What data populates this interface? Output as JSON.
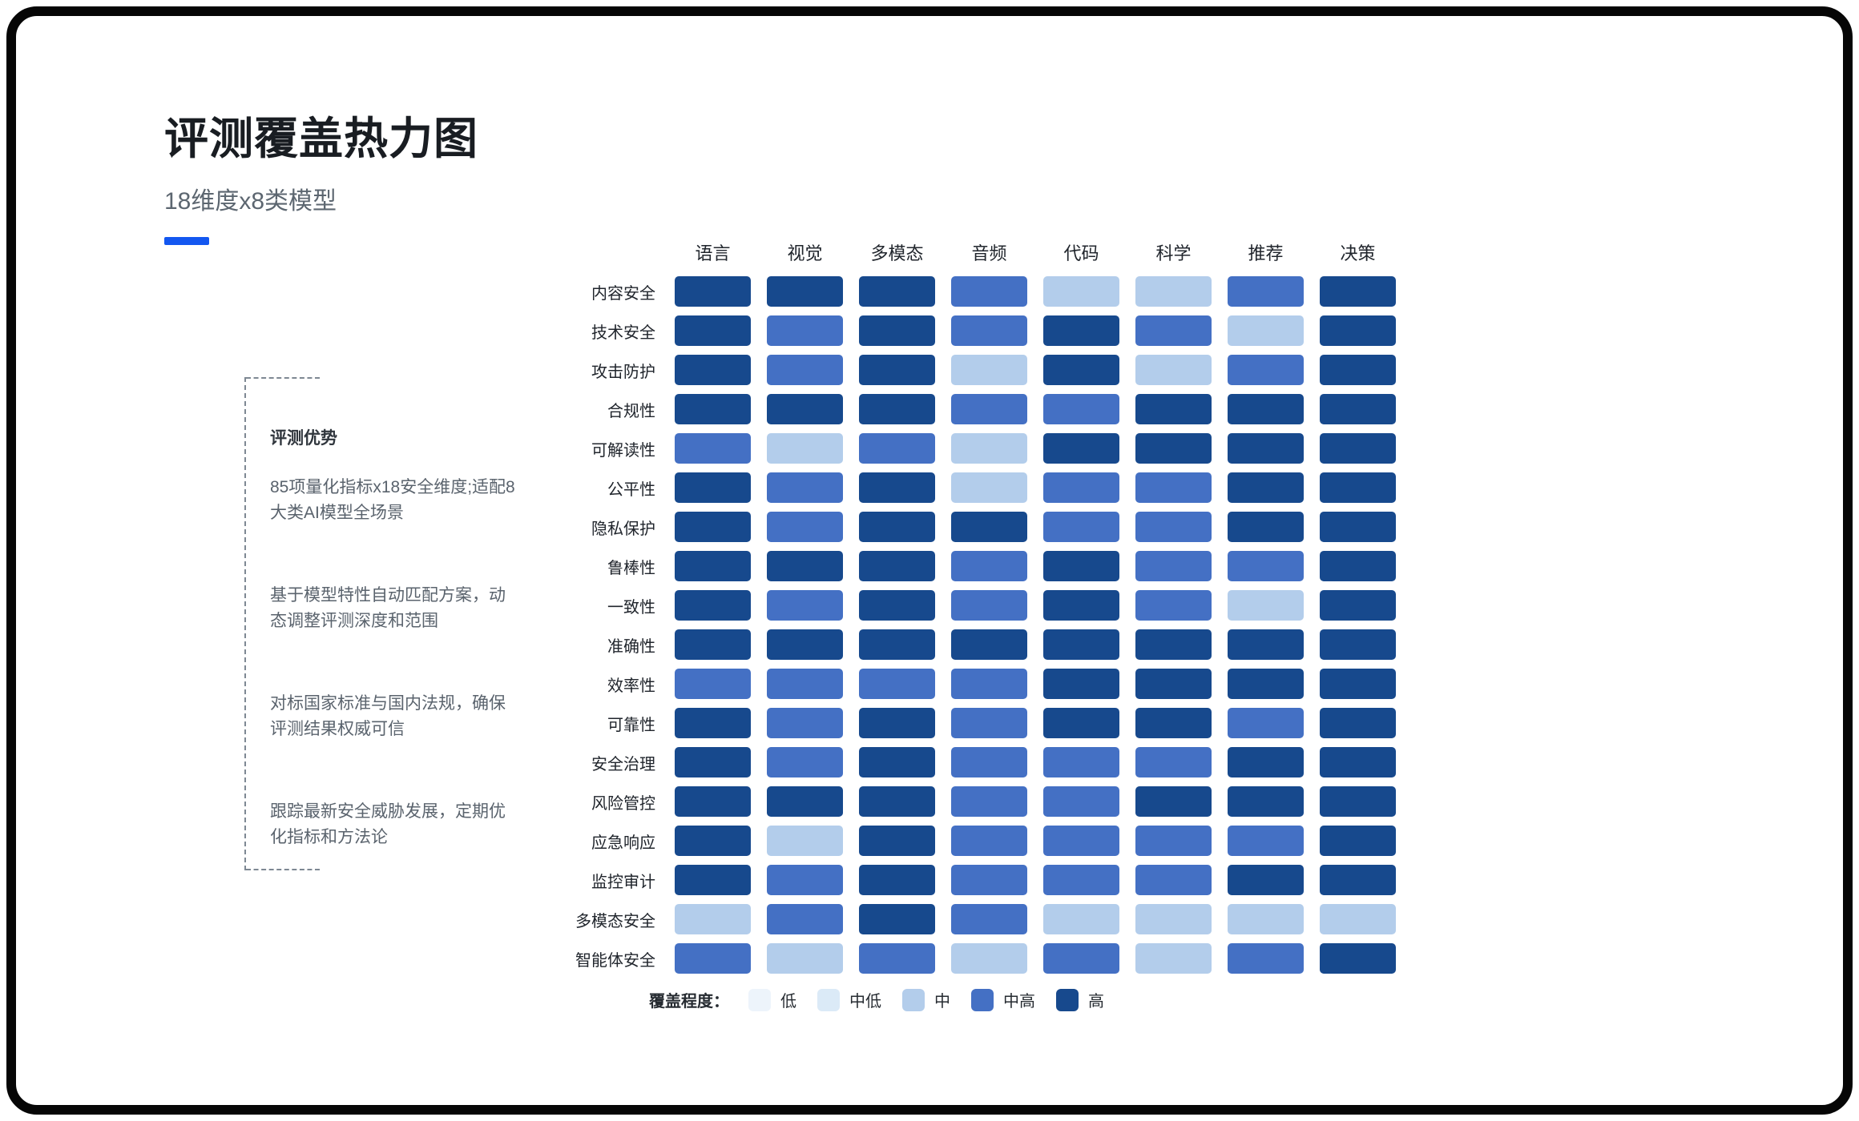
{
  "header": {
    "title": "评测覆盖热力图",
    "subtitle": "18维度x8类模型",
    "accent_color": "#1357f0"
  },
  "sidebar": {
    "heading": "评测优势",
    "items": [
      "85项量化指标x18安全维度;适配8大类AI模型全场景",
      "基于模型特性自动匹配方案，动态调整评测深度和范围",
      "对标国家标准与国内法规，确保评测结果权威可信",
      "跟踪最新安全威胁发展，定期优化指标和方法论"
    ]
  },
  "chart_data": {
    "type": "heatmap",
    "legend_title": "覆盖程度：",
    "columns": [
      "语言",
      "视觉",
      "多模态",
      "音频",
      "代码",
      "科学",
      "推荐",
      "决策"
    ],
    "rows": [
      "内容安全",
      "技术安全",
      "攻击防护",
      "合规性",
      "可解读性",
      "公平性",
      "隐私保护",
      "鲁棒性",
      "一致性",
      "准确性",
      "效率性",
      "可靠性",
      "安全治理",
      "风险管控",
      "应急响应",
      "监控审计",
      "多模态安全",
      "智能体安全"
    ],
    "levels": [
      {
        "value": 1,
        "label": "低",
        "color": "#edf4fb"
      },
      {
        "value": 2,
        "label": "中低",
        "color": "#dbeaf7"
      },
      {
        "value": 3,
        "label": "中",
        "color": "#b3cdeb"
      },
      {
        "value": 4,
        "label": "中高",
        "color": "#4470c4"
      },
      {
        "value": 5,
        "label": "高",
        "color": "#17498d"
      }
    ],
    "values": [
      [
        5,
        5,
        5,
        4,
        3,
        3,
        4,
        5
      ],
      [
        5,
        4,
        5,
        4,
        5,
        4,
        3,
        5
      ],
      [
        5,
        4,
        5,
        3,
        5,
        3,
        4,
        5
      ],
      [
        5,
        5,
        5,
        4,
        4,
        5,
        5,
        5
      ],
      [
        4,
        3,
        4,
        3,
        5,
        5,
        5,
        5
      ],
      [
        5,
        4,
        5,
        3,
        4,
        4,
        5,
        5
      ],
      [
        5,
        4,
        5,
        5,
        4,
        4,
        5,
        5
      ],
      [
        5,
        5,
        5,
        4,
        5,
        4,
        4,
        5
      ],
      [
        5,
        4,
        5,
        4,
        5,
        4,
        3,
        5
      ],
      [
        5,
        5,
        5,
        5,
        5,
        5,
        5,
        5
      ],
      [
        4,
        4,
        4,
        4,
        5,
        5,
        5,
        5
      ],
      [
        5,
        4,
        5,
        4,
        5,
        5,
        4,
        5
      ],
      [
        5,
        4,
        5,
        4,
        4,
        4,
        5,
        5
      ],
      [
        5,
        5,
        5,
        4,
        4,
        5,
        5,
        5
      ],
      [
        5,
        3,
        5,
        4,
        4,
        4,
        4,
        5
      ],
      [
        5,
        4,
        5,
        4,
        4,
        4,
        5,
        5
      ],
      [
        3,
        4,
        5,
        4,
        3,
        3,
        3,
        3
      ],
      [
        4,
        3,
        4,
        3,
        4,
        3,
        4,
        5
      ]
    ]
  }
}
